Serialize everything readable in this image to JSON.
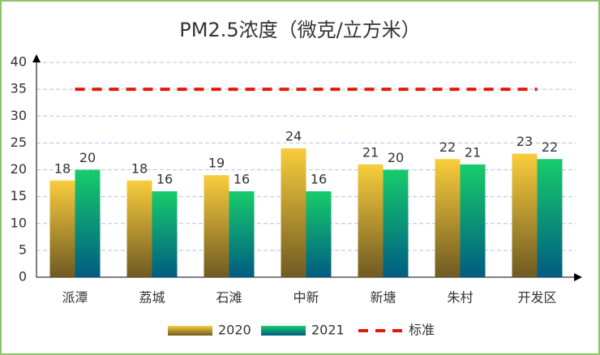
{
  "chart_data": {
    "type": "bar",
    "title": "PM2.5浓度（微克/立方米）",
    "categories": [
      "派潭",
      "荔城",
      "石滩",
      "中新",
      "新塘",
      "朱村",
      "开发区"
    ],
    "series": [
      {
        "name": "2020",
        "color": "#f9cd3c",
        "values": [
          18,
          18,
          19,
          24,
          21,
          22,
          23
        ]
      },
      {
        "name": "2021",
        "color": "#17cc6b",
        "values": [
          20,
          16,
          16,
          16,
          20,
          21,
          22
        ]
      },
      {
        "name": "标准",
        "color": "#e3170a",
        "type": "line",
        "values": [
          35,
          35,
          35,
          35,
          35,
          35,
          35
        ]
      }
    ],
    "ylim": [
      0,
      40
    ],
    "yticks": [
      0,
      5,
      10,
      15,
      20,
      25,
      30,
      35,
      40
    ],
    "grid": true,
    "legend": "bottom"
  }
}
